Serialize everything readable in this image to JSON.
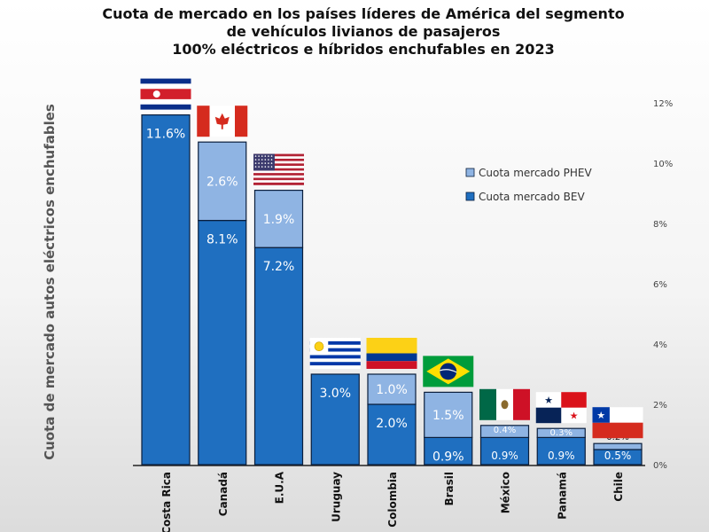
{
  "title_lines": [
    "Cuota de mercado  en los países líderes de América del segmento",
    "de vehículos livianos de pasajeros",
    "100% eléctricos e híbridos enchufables  en 2023"
  ],
  "chart_data": {
    "type": "bar",
    "stacked": true,
    "categories": [
      "Costa Rica",
      "Canadá",
      "E.U.A",
      "Uruguay",
      "Colombia",
      "Brasil",
      "México",
      "Panamá",
      "Chile"
    ],
    "series": [
      {
        "name": "Cuota mercado BEV",
        "color": "#1f6fc0",
        "values": [
          11.6,
          8.1,
          7.2,
          3.0,
          2.0,
          0.9,
          0.9,
          0.9,
          0.5
        ],
        "labels": [
          "11.6%",
          "8.1%",
          "7.2%",
          "3.0%",
          "2.0%",
          "0.9%",
          "0.9%",
          "0.9%",
          "0.5%"
        ]
      },
      {
        "name": "Cuota mercado PHEV",
        "color": "#8fb4e3",
        "values": [
          0,
          2.6,
          1.9,
          0,
          1.0,
          1.5,
          0.4,
          0.3,
          0.2
        ],
        "labels": [
          "",
          "2.6%",
          "1.9%",
          "",
          "1.0%",
          "1.5%",
          "0.4%",
          "0.3%",
          "0.2%"
        ]
      }
    ],
    "legend": [
      "Cuota mercado PHEV",
      "Cuota mercado BEV"
    ],
    "ylabel": "Cuota de mercado autos eléctricos enchufables",
    "ylim": [
      0,
      12
    ],
    "yticks": [
      0,
      2,
      4,
      6,
      8,
      10,
      12
    ],
    "ytick_labels": [
      "0%",
      "2%",
      "4%",
      "6%",
      "8%",
      "10%",
      "12%"
    ],
    "yaxis_position": "right",
    "flags": [
      "costa-rica-flag",
      "canada-flag",
      "usa-flag",
      "uruguay-flag",
      "colombia-flag",
      "brazil-flag",
      "mexico-flag",
      "panama-flag",
      "chile-flag"
    ]
  }
}
